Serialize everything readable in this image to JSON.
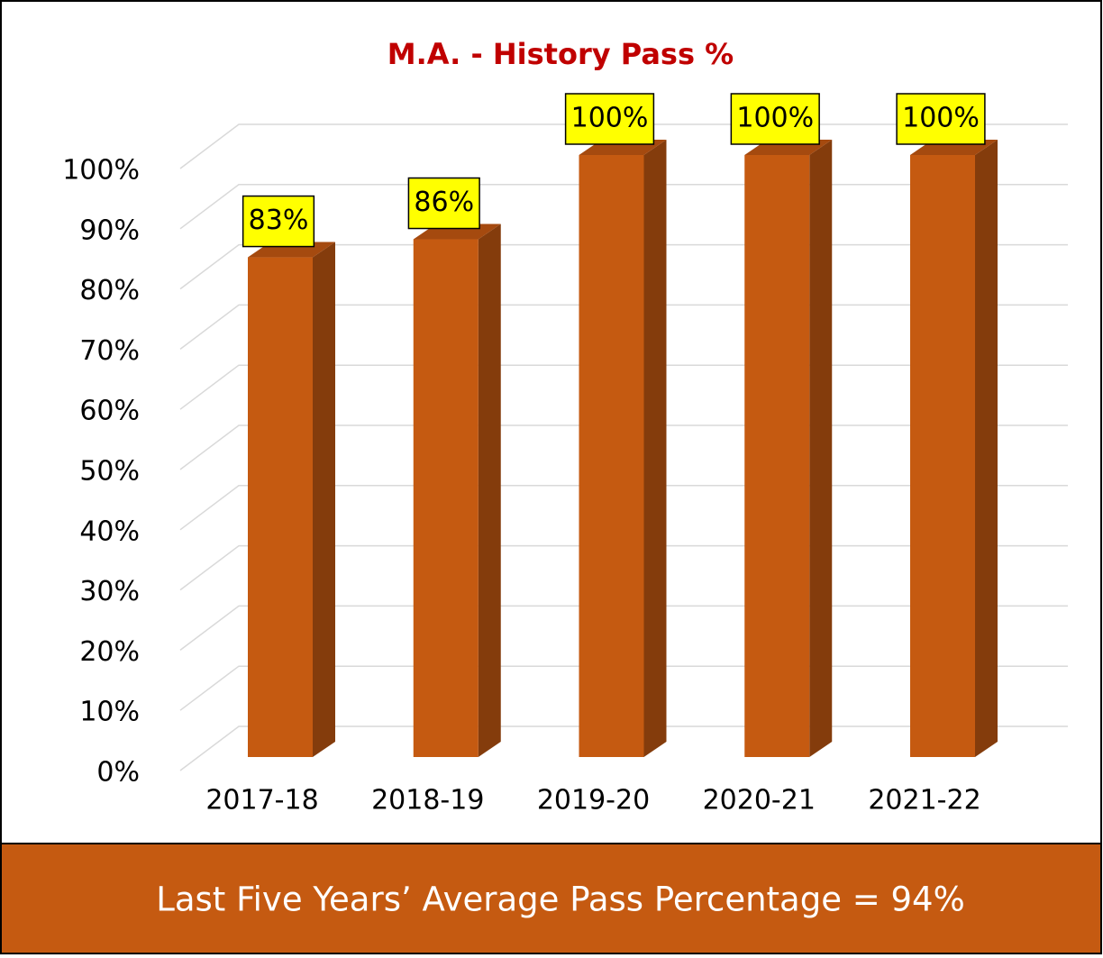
{
  "chart_data": {
    "type": "bar3d",
    "title": "M.A. - History Pass %",
    "categories": [
      "2017-18",
      "2018-19",
      "2019-20",
      "2020-21",
      "2021-22"
    ],
    "values": [
      83,
      86,
      100,
      100,
      100
    ],
    "value_labels": [
      "83%",
      "86%",
      "100%",
      "100%",
      "100%"
    ],
    "color": "#c55a11",
    "side_color": "#843c0c",
    "top_color": "#a54a0f",
    "label_background": "#ffff00",
    "title_color": "#c00000",
    "ylim": [
      0,
      100
    ],
    "yticks": [
      {
        "value": 0,
        "label": "0%"
      },
      {
        "value": 10,
        "label": "10%"
      },
      {
        "value": 20,
        "label": "20%"
      },
      {
        "value": 30,
        "label": "30%"
      },
      {
        "value": 40,
        "label": "40%"
      },
      {
        "value": 50,
        "label": "50%"
      },
      {
        "value": 60,
        "label": "60%"
      },
      {
        "value": 70,
        "label": "70%"
      },
      {
        "value": 80,
        "label": "80%"
      },
      {
        "value": 90,
        "label": "90%"
      },
      {
        "value": 100,
        "label": "100%"
      }
    ],
    "grid": true,
    "footer": "Last Five Years’ Average Pass Percentage =   94%"
  }
}
